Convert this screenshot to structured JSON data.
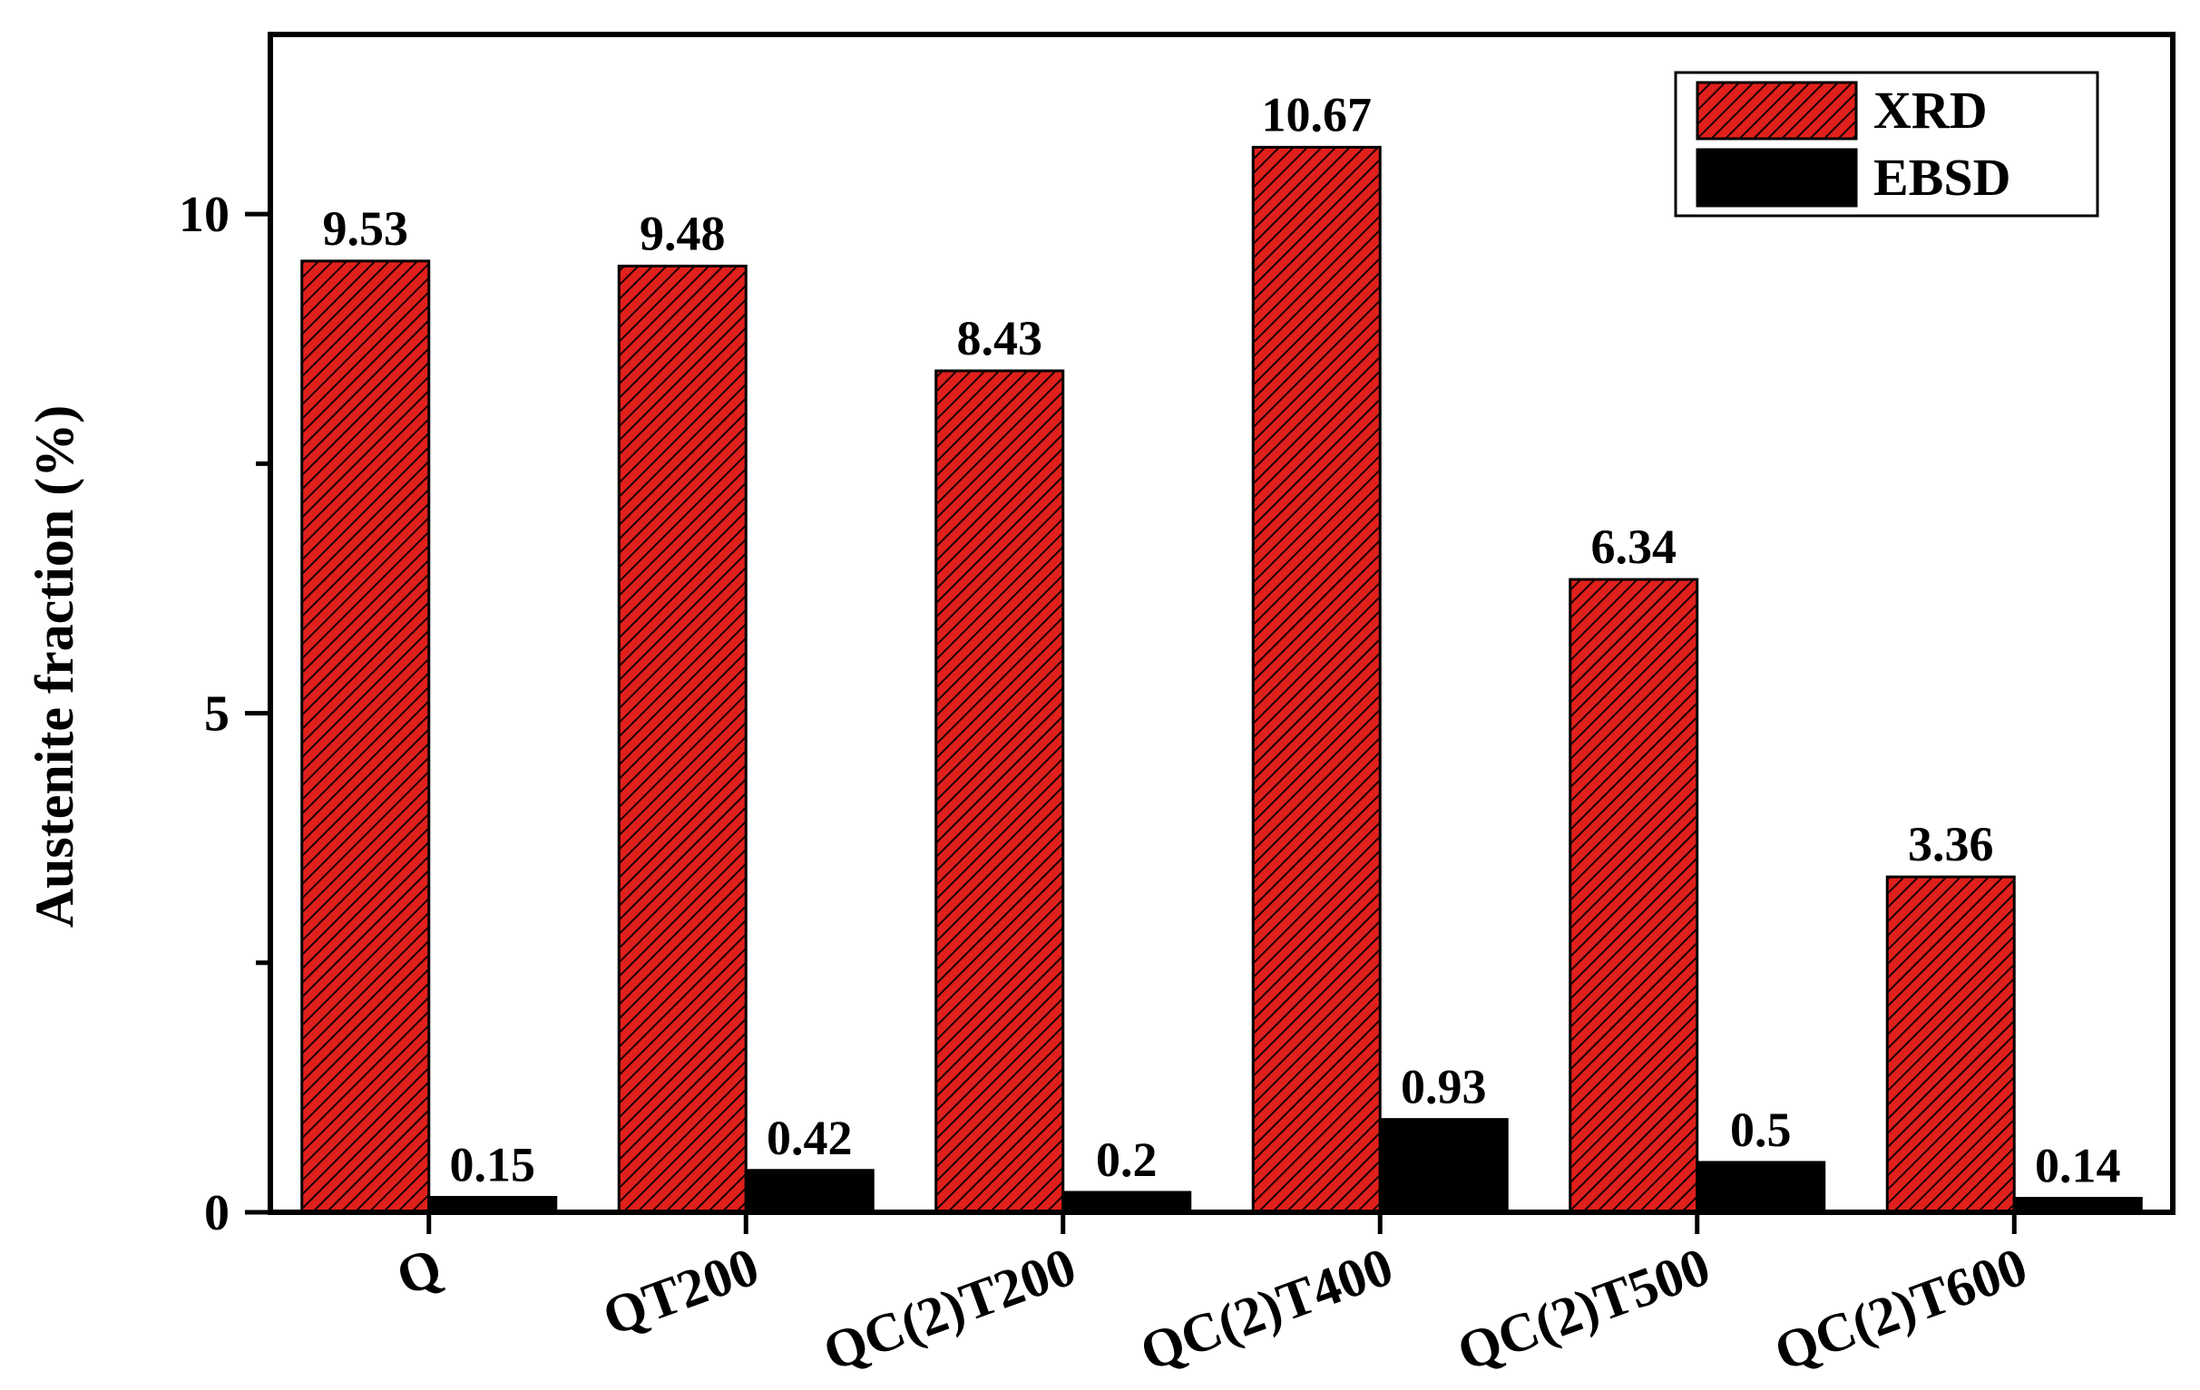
{
  "chart_data": {
    "type": "bar",
    "title": "",
    "xlabel": "",
    "ylabel": "Austenite fraction (%)",
    "categories": [
      "Q",
      "QT200",
      "QC(2)T200",
      "QC(2)T400",
      "QC(2)T500",
      "QC(2)T600"
    ],
    "series": [
      {
        "name": "XRD",
        "values": [
          9.53,
          9.48,
          8.43,
          10.67,
          6.34,
          3.36
        ],
        "labels": [
          "9.53",
          "9.48",
          "8.43",
          "10.67",
          "6.34",
          "3.36"
        ],
        "color": "#e0201c",
        "pattern": "diagonal-hatch"
      },
      {
        "name": "EBSD",
        "values": [
          0.15,
          0.42,
          0.2,
          0.93,
          0.5,
          0.14
        ],
        "labels": [
          "0.15",
          "0.42",
          "0.2",
          "0.93",
          "0.5",
          "0.14"
        ],
        "color": "#000000",
        "pattern": "solid"
      }
    ],
    "ylim": [
      0,
      11.8
    ],
    "yticks": [
      0,
      5,
      10
    ],
    "ytick_labels": [
      "0",
      "5",
      "10"
    ],
    "legend": {
      "position": "top-right"
    },
    "grid": false
  }
}
